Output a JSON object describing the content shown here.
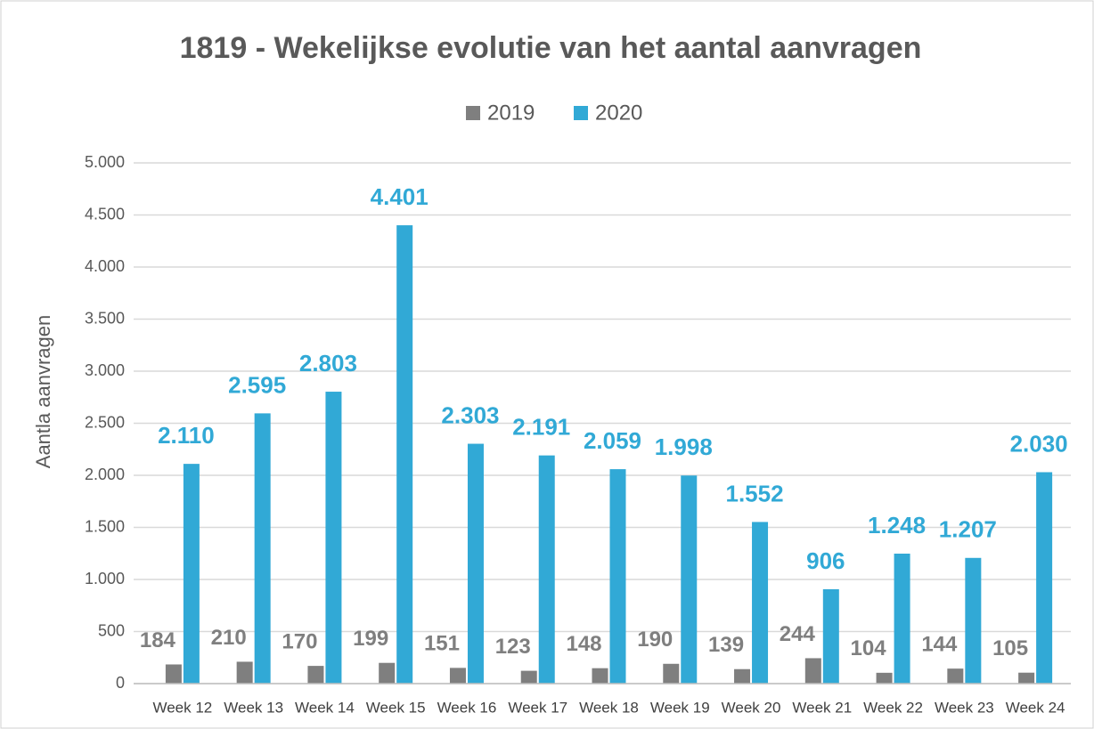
{
  "chart_data": {
    "type": "bar",
    "title": "1819 - Wekelijkse evolutie van het aantal aanvragen",
    "y_label": "Aantla aanvragen",
    "categories": [
      "Week 12",
      "Week 13",
      "Week 14",
      "Week 15",
      "Week 16",
      "Week 17",
      "Week 18",
      "Week 19",
      "Week 20",
      "Week 21",
      "Week 22",
      "Week 23",
      "Week 24"
    ],
    "series": [
      {
        "name": "2019",
        "color": "#7f7f7f",
        "values": [
          184,
          210,
          170,
          199,
          151,
          123,
          148,
          190,
          139,
          244,
          104,
          144,
          105
        ]
      },
      {
        "name": "2020",
        "color": "#31a9d6",
        "values": [
          2110,
          2595,
          2803,
          4401,
          2303,
          2191,
          2059,
          1998,
          1552,
          906,
          1248,
          1207,
          2030
        ],
        "value_labels": [
          "2.110",
          "2.595",
          "2.803",
          "4.401",
          "2.303",
          "2.191",
          "2.059",
          "1.998",
          "1.552",
          "906",
          "1.248",
          "1.207",
          "2.030"
        ]
      }
    ],
    "ylim": [
      0,
      5000
    ],
    "yticks": [
      0,
      500,
      {
        "value": 1000,
        "label": "1.000"
      },
      {
        "value": 1500,
        "label": "1.500"
      },
      {
        "value": 2000,
        "label": "2.000"
      },
      {
        "value": 2500,
        "label": "2.500"
      },
      {
        "value": 3000,
        "label": "3.000"
      },
      {
        "value": 3500,
        "label": "3.500"
      },
      {
        "value": 4000,
        "label": "4.000"
      },
      {
        "value": 4500,
        "label": "4.500"
      },
      {
        "value": 5000,
        "label": "5.000"
      }
    ],
    "grid": true,
    "legend": "top"
  }
}
